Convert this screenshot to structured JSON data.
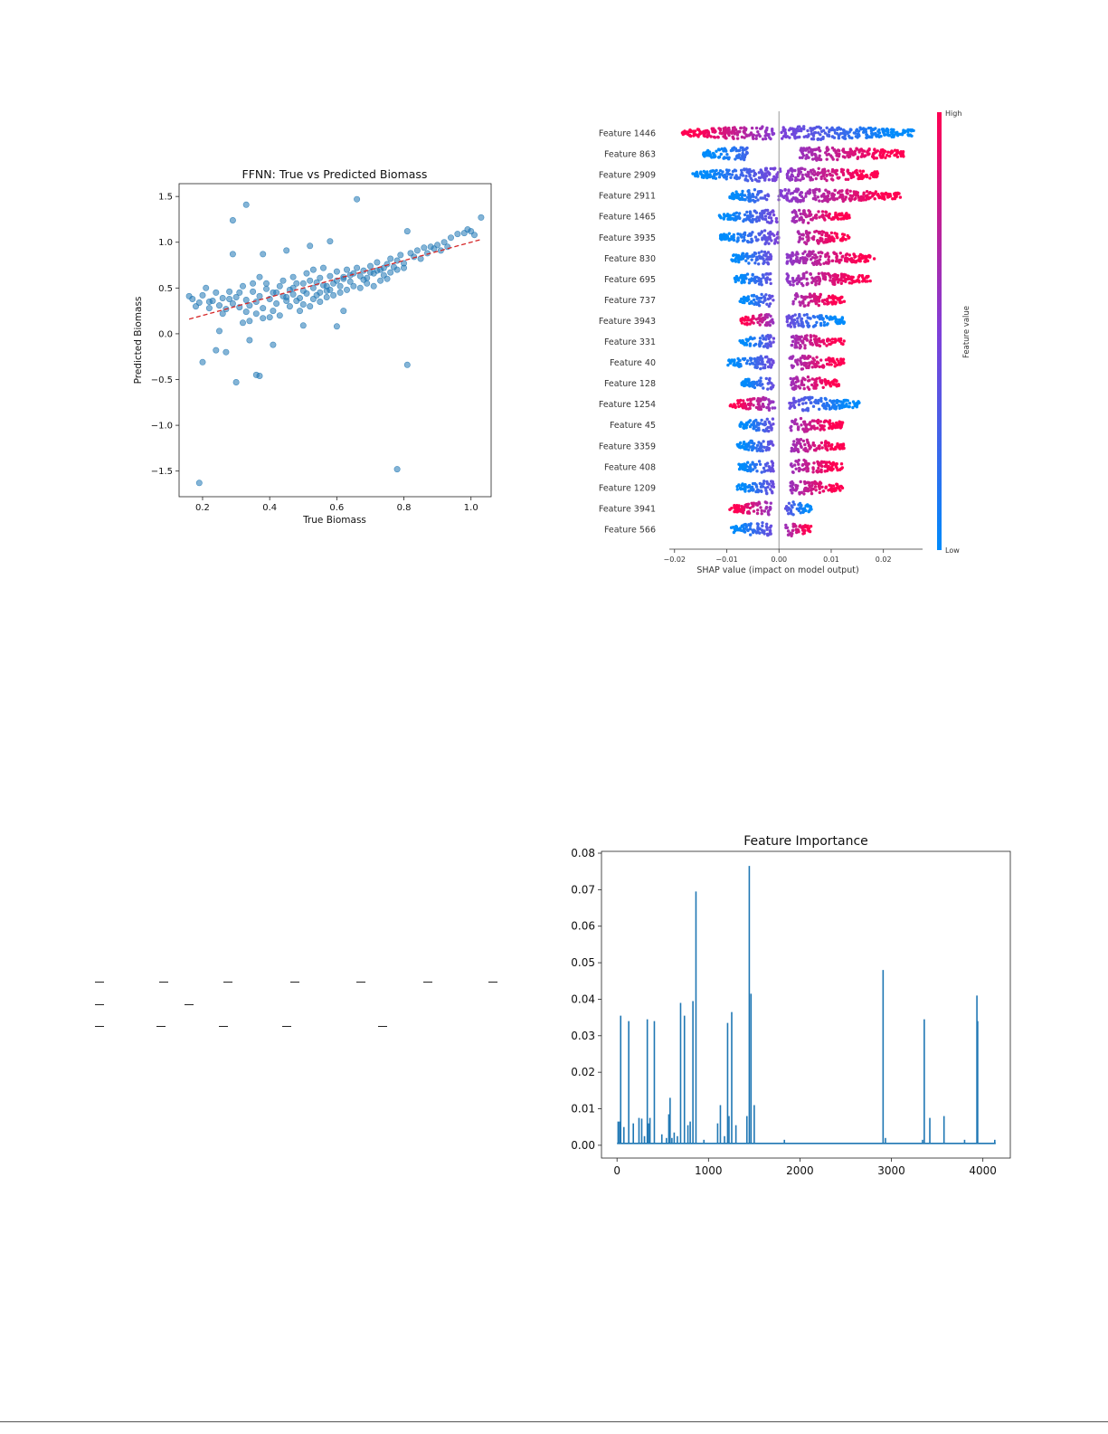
{
  "chart_data": [
    {
      "type": "scatter",
      "title": "FFNN: True vs Predicted Biomass",
      "xlabel": "True Biomass",
      "ylabel": "Predicted Biomass",
      "xlim": [
        0.13,
        1.06
      ],
      "ylim": [
        -1.78,
        1.64
      ],
      "xticks": [
        "0.2",
        "0.4",
        "0.6",
        "0.8",
        "1.0"
      ],
      "xtick_values": [
        0.2,
        0.4,
        0.6,
        0.8,
        1.0
      ],
      "yticks": [
        "1.5",
        "1.0",
        "0.5",
        "0.0",
        "−0.5",
        "−1.0",
        "−1.5"
      ],
      "ytick_values": [
        1.5,
        1.0,
        0.5,
        0.0,
        -0.5,
        -1.0,
        -1.5
      ],
      "point_color": "#1f77b4",
      "reference_line": {
        "x": [
          0.16,
          1.03
        ],
        "y": [
          0.16,
          1.03
        ],
        "color": "#d62728",
        "style": "dashed"
      },
      "points": [
        [
          0.19,
          -1.63
        ],
        [
          0.29,
          1.24
        ],
        [
          0.33,
          1.41
        ],
        [
          0.66,
          1.47
        ],
        [
          0.78,
          -1.48
        ],
        [
          0.81,
          -0.34
        ],
        [
          0.2,
          -0.31
        ],
        [
          0.36,
          -0.45
        ],
        [
          0.37,
          -0.46
        ],
        [
          0.3,
          -0.53
        ],
        [
          0.24,
          -0.18
        ],
        [
          0.27,
          -0.2
        ],
        [
          0.34,
          -0.07
        ],
        [
          0.41,
          -0.12
        ],
        [
          0.29,
          0.87
        ],
        [
          0.38,
          0.87
        ],
        [
          0.45,
          0.91
        ],
        [
          0.52,
          0.96
        ],
        [
          0.58,
          1.01
        ],
        [
          0.81,
          1.12
        ],
        [
          0.99,
          1.14
        ],
        [
          1.03,
          1.27
        ],
        [
          0.6,
          0.08
        ],
        [
          0.62,
          0.25
        ],
        [
          0.32,
          0.12
        ],
        [
          0.34,
          0.14
        ],
        [
          0.25,
          0.03
        ],
        [
          0.5,
          0.09
        ],
        [
          0.16,
          0.41
        ],
        [
          0.17,
          0.38
        ],
        [
          0.18,
          0.3
        ],
        [
          0.19,
          0.34
        ],
        [
          0.2,
          0.42
        ],
        [
          0.21,
          0.5
        ],
        [
          0.22,
          0.28
        ],
        [
          0.23,
          0.36
        ],
        [
          0.24,
          0.45
        ],
        [
          0.25,
          0.31
        ],
        [
          0.26,
          0.39
        ],
        [
          0.27,
          0.27
        ],
        [
          0.28,
          0.46
        ],
        [
          0.29,
          0.33
        ],
        [
          0.3,
          0.4
        ],
        [
          0.31,
          0.29
        ],
        [
          0.32,
          0.52
        ],
        [
          0.33,
          0.37
        ],
        [
          0.34,
          0.31
        ],
        [
          0.35,
          0.46
        ],
        [
          0.36,
          0.35
        ],
        [
          0.37,
          0.41
        ],
        [
          0.38,
          0.28
        ],
        [
          0.39,
          0.49
        ],
        [
          0.4,
          0.38
        ],
        [
          0.41,
          0.45
        ],
        [
          0.42,
          0.33
        ],
        [
          0.43,
          0.52
        ],
        [
          0.44,
          0.41
        ],
        [
          0.45,
          0.36
        ],
        [
          0.46,
          0.48
        ],
        [
          0.47,
          0.43
        ],
        [
          0.48,
          0.55
        ],
        [
          0.49,
          0.39
        ],
        [
          0.5,
          0.47
        ],
        [
          0.51,
          0.44
        ],
        [
          0.52,
          0.58
        ],
        [
          0.53,
          0.5
        ],
        [
          0.54,
          0.42
        ],
        [
          0.55,
          0.61
        ],
        [
          0.56,
          0.53
        ],
        [
          0.57,
          0.47
        ],
        [
          0.58,
          0.63
        ],
        [
          0.59,
          0.55
        ],
        [
          0.6,
          0.68
        ],
        [
          0.61,
          0.52
        ],
        [
          0.62,
          0.6
        ],
        [
          0.63,
          0.7
        ],
        [
          0.64,
          0.57
        ],
        [
          0.65,
          0.66
        ],
        [
          0.66,
          0.72
        ],
        [
          0.67,
          0.63
        ],
        [
          0.68,
          0.69
        ],
        [
          0.69,
          0.61
        ],
        [
          0.7,
          0.74
        ],
        [
          0.71,
          0.66
        ],
        [
          0.72,
          0.78
        ],
        [
          0.73,
          0.7
        ],
        [
          0.74,
          0.64
        ],
        [
          0.75,
          0.76
        ],
        [
          0.76,
          0.82
        ],
        [
          0.77,
          0.73
        ],
        [
          0.78,
          0.8
        ],
        [
          0.79,
          0.86
        ],
        [
          0.8,
          0.77
        ],
        [
          0.82,
          0.88
        ],
        [
          0.84,
          0.91
        ],
        [
          0.86,
          0.94
        ],
        [
          0.88,
          0.95
        ],
        [
          0.9,
          0.97
        ],
        [
          0.92,
          1.0
        ],
        [
          0.94,
          1.05
        ],
        [
          0.96,
          1.09
        ],
        [
          0.98,
          1.1
        ],
        [
          1.0,
          1.12
        ],
        [
          1.01,
          1.08
        ],
        [
          0.35,
          0.55
        ],
        [
          0.37,
          0.62
        ],
        [
          0.39,
          0.55
        ],
        [
          0.41,
          0.25
        ],
        [
          0.43,
          0.2
        ],
        [
          0.44,
          0.58
        ],
        [
          0.46,
          0.3
        ],
        [
          0.47,
          0.62
        ],
        [
          0.49,
          0.25
        ],
        [
          0.51,
          0.66
        ],
        [
          0.52,
          0.3
        ],
        [
          0.53,
          0.7
        ],
        [
          0.55,
          0.35
        ],
        [
          0.56,
          0.72
        ],
        [
          0.57,
          0.4
        ],
        [
          0.59,
          0.42
        ],
        [
          0.61,
          0.45
        ],
        [
          0.63,
          0.48
        ],
        [
          0.65,
          0.52
        ],
        [
          0.67,
          0.5
        ],
        [
          0.69,
          0.55
        ],
        [
          0.71,
          0.52
        ],
        [
          0.73,
          0.58
        ],
        [
          0.75,
          0.6
        ],
        [
          0.36,
          0.22
        ],
        [
          0.38,
          0.17
        ],
        [
          0.4,
          0.18
        ],
        [
          0.42,
          0.45
        ],
        [
          0.45,
          0.4
        ],
        [
          0.48,
          0.36
        ],
        [
          0.5,
          0.32
        ],
        [
          0.53,
          0.38
        ],
        [
          0.55,
          0.45
        ],
        [
          0.57,
          0.52
        ],
        [
          0.22,
          0.35
        ],
        [
          0.26,
          0.22
        ],
        [
          0.28,
          0.38
        ],
        [
          0.31,
          0.45
        ],
        [
          0.33,
          0.24
        ],
        [
          0.47,
          0.5
        ],
        [
          0.5,
          0.55
        ],
        [
          0.54,
          0.56
        ],
        [
          0.58,
          0.48
        ],
        [
          0.6,
          0.58
        ],
        [
          0.62,
          0.62
        ],
        [
          0.64,
          0.64
        ],
        [
          0.68,
          0.59
        ],
        [
          0.7,
          0.67
        ],
        [
          0.72,
          0.69
        ],
        [
          0.74,
          0.72
        ],
        [
          0.76,
          0.67
        ],
        [
          0.78,
          0.7
        ],
        [
          0.8,
          0.72
        ],
        [
          0.83,
          0.84
        ],
        [
          0.85,
          0.82
        ],
        [
          0.87,
          0.88
        ],
        [
          0.89,
          0.93
        ],
        [
          0.91,
          0.91
        ],
        [
          0.93,
          0.95
        ]
      ]
    },
    {
      "type": "scatter",
      "subtype": "beeswarm",
      "xlabel": "SHAP value (impact on model output)",
      "xlim": [
        -0.021,
        0.0275
      ],
      "xticks": [
        "−0.02",
        "−0.01",
        "0.00",
        "0.01",
        "0.02"
      ],
      "xtick_values": [
        -0.02,
        -0.01,
        0.0,
        0.01,
        0.02
      ],
      "colorbar": {
        "label": "Feature value",
        "high": "High",
        "low": "Low",
        "high_color": "#ff0052",
        "low_color": "#008bfb"
      },
      "features": [
        {
          "name": "Feature 1446",
          "neg": [
            -0.0185,
            -0.0005
          ],
          "pos": [
            0.0005,
            0.026
          ],
          "neg_dir": "high",
          "pos_dir": "low"
        },
        {
          "name": "Feature 863",
          "neg": [
            -0.0145,
            -0.006
          ],
          "pos": [
            0.004,
            0.024
          ],
          "neg_dir": "low",
          "pos_dir": "high"
        },
        {
          "name": "Feature 2909",
          "neg": [
            -0.0165,
            0.0003
          ],
          "pos": [
            0.0015,
            0.019
          ],
          "neg_dir": "low",
          "pos_dir": "high"
        },
        {
          "name": "Feature 2911",
          "neg": [
            -0.0095,
            -0.002
          ],
          "pos": [
            -0.0002,
            0.0235
          ],
          "neg_dir": "low",
          "pos_dir": "high"
        },
        {
          "name": "Feature 1465",
          "neg": [
            -0.0115,
            -0.0002
          ],
          "pos": [
            0.0025,
            0.0135
          ],
          "neg_dir": "low",
          "pos_dir": "high"
        },
        {
          "name": "Feature 3935",
          "neg": [
            -0.0115,
            0.0
          ],
          "pos": [
            0.0035,
            0.0135
          ],
          "neg_dir": "low",
          "pos_dir": "high"
        },
        {
          "name": "Feature 830",
          "neg": [
            -0.0095,
            -0.0015
          ],
          "pos": [
            0.0015,
            0.0185
          ],
          "neg_dir": "low",
          "pos_dir": "high"
        },
        {
          "name": "Feature 695",
          "neg": [
            -0.0085,
            -0.0015
          ],
          "pos": [
            0.0015,
            0.0175
          ],
          "neg_dir": "low",
          "pos_dir": "high"
        },
        {
          "name": "Feature 737",
          "neg": [
            -0.0075,
            -0.001
          ],
          "pos": [
            0.0025,
            0.0125
          ],
          "neg_dir": "low",
          "pos_dir": "high"
        },
        {
          "name": "Feature 3943",
          "neg": [
            -0.0075,
            -0.001
          ],
          "pos": [
            0.0015,
            0.0125
          ],
          "neg_dir": "high",
          "pos_dir": "low"
        },
        {
          "name": "Feature 331",
          "neg": [
            -0.0075,
            -0.001
          ],
          "pos": [
            0.0022,
            0.0125
          ],
          "neg_dir": "low",
          "pos_dir": "high"
        },
        {
          "name": "Feature 40",
          "neg": [
            -0.01,
            -0.001
          ],
          "pos": [
            0.002,
            0.0125
          ],
          "neg_dir": "low",
          "pos_dir": "high"
        },
        {
          "name": "Feature 128",
          "neg": [
            -0.0075,
            -0.001
          ],
          "pos": [
            0.002,
            0.0115
          ],
          "neg_dir": "low",
          "pos_dir": "high"
        },
        {
          "name": "Feature 1254",
          "neg": [
            -0.0095,
            -0.0005
          ],
          "pos": [
            0.002,
            0.0155
          ],
          "neg_dir": "high",
          "pos_dir": "low"
        },
        {
          "name": "Feature 45",
          "neg": [
            -0.0075,
            -0.001
          ],
          "pos": [
            0.0022,
            0.0122
          ],
          "neg_dir": "low",
          "pos_dir": "high"
        },
        {
          "name": "Feature 3359",
          "neg": [
            -0.008,
            -0.001
          ],
          "pos": [
            0.0022,
            0.0125
          ],
          "neg_dir": "low",
          "pos_dir": "high"
        },
        {
          "name": "Feature 408",
          "neg": [
            -0.008,
            -0.001
          ],
          "pos": [
            0.0022,
            0.0122
          ],
          "neg_dir": "low",
          "pos_dir": "high"
        },
        {
          "name": "Feature 1209",
          "neg": [
            -0.008,
            -0.001
          ],
          "pos": [
            0.0022,
            0.0122
          ],
          "neg_dir": "low",
          "pos_dir": "high"
        },
        {
          "name": "Feature 3941",
          "neg": [
            -0.0095,
            -0.0015
          ],
          "pos": [
            0.0012,
            0.0062
          ],
          "neg_dir": "high",
          "pos_dir": "low"
        },
        {
          "name": "Feature 566",
          "neg": [
            -0.0095,
            -0.0015
          ],
          "pos": [
            0.0012,
            0.0062
          ],
          "neg_dir": "low",
          "pos_dir": "high"
        }
      ]
    },
    {
      "type": "line",
      "title": "Feature Importance",
      "xlim": [
        -170,
        4300
      ],
      "ylim": [
        -0.0035,
        0.0805
      ],
      "xticks": [
        "0",
        "1000",
        "2000",
        "3000",
        "4000"
      ],
      "xtick_values": [
        0,
        1000,
        2000,
        3000,
        4000
      ],
      "yticks": [
        "0.00",
        "0.01",
        "0.02",
        "0.03",
        "0.04",
        "0.05",
        "0.06",
        "0.07",
        "0.08"
      ],
      "ytick_values": [
        0.0,
        0.01,
        0.02,
        0.03,
        0.04,
        0.05,
        0.06,
        0.07,
        0.08
      ],
      "line_color": "#1f77b4",
      "baseline": 0.0005,
      "spikes": [
        [
          12,
          0.0065
        ],
        [
          28,
          0.0065
        ],
        [
          40,
          0.0355
        ],
        [
          75,
          0.005
        ],
        [
          128,
          0.034
        ],
        [
          178,
          0.006
        ],
        [
          240,
          0.0075
        ],
        [
          270,
          0.0073
        ],
        [
          300,
          0.0025
        ],
        [
          331,
          0.0345
        ],
        [
          345,
          0.006
        ],
        [
          360,
          0.0075
        ],
        [
          408,
          0.034
        ],
        [
          490,
          0.003
        ],
        [
          540,
          0.002
        ],
        [
          566,
          0.0085
        ],
        [
          580,
          0.013
        ],
        [
          600,
          0.002
        ],
        [
          625,
          0.0035
        ],
        [
          660,
          0.0025
        ],
        [
          695,
          0.039
        ],
        [
          737,
          0.0355
        ],
        [
          775,
          0.0055
        ],
        [
          800,
          0.0065
        ],
        [
          830,
          0.0395
        ],
        [
          863,
          0.0695
        ],
        [
          950,
          0.0015
        ],
        [
          1100,
          0.006
        ],
        [
          1130,
          0.011
        ],
        [
          1175,
          0.0025
        ],
        [
          1209,
          0.0335
        ],
        [
          1224,
          0.008
        ],
        [
          1254,
          0.0365
        ],
        [
          1300,
          0.0055
        ],
        [
          1420,
          0.008
        ],
        [
          1446,
          0.0765
        ],
        [
          1465,
          0.0415
        ],
        [
          1500,
          0.011
        ],
        [
          1830,
          0.0015
        ],
        [
          2909,
          0.048
        ],
        [
          2935,
          0.002
        ],
        [
          3340,
          0.0015
        ],
        [
          3359,
          0.0345
        ],
        [
          3420,
          0.0075
        ],
        [
          3560,
          0.0005
        ],
        [
          3575,
          0.008
        ],
        [
          3800,
          0.0015
        ],
        [
          3935,
          0.041
        ],
        [
          3943,
          0.034
        ],
        [
          4130,
          0.0015
        ]
      ]
    }
  ]
}
